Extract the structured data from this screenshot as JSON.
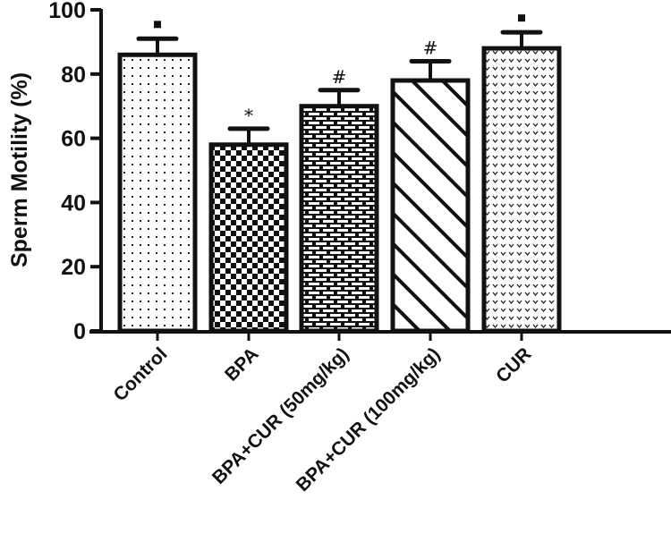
{
  "chart_data": {
    "type": "bar",
    "title": "",
    "xlabel": "",
    "ylabel": "Sperm Motility (%)",
    "ylim": [
      0,
      100
    ],
    "yticks": [
      0,
      20,
      40,
      60,
      80,
      100
    ],
    "grid": false,
    "categories": [
      "Control",
      "BPA",
      "BPA+CUR (50mg/kg)",
      "BPA+CUR (100mg/kg)",
      "CUR"
    ],
    "values": [
      86,
      58,
      70,
      78,
      88
    ],
    "error_upper": [
      5,
      5,
      5,
      6,
      5
    ],
    "annotations": [
      "▪",
      "*",
      "#",
      "#",
      "▪"
    ],
    "patterns": [
      "dots",
      "checkerboard",
      "brick",
      "diagonal-stripes",
      "v-dots"
    ]
  },
  "axis": {
    "tick_labels": [
      "0",
      "20",
      "40",
      "60",
      "80",
      "100"
    ]
  }
}
